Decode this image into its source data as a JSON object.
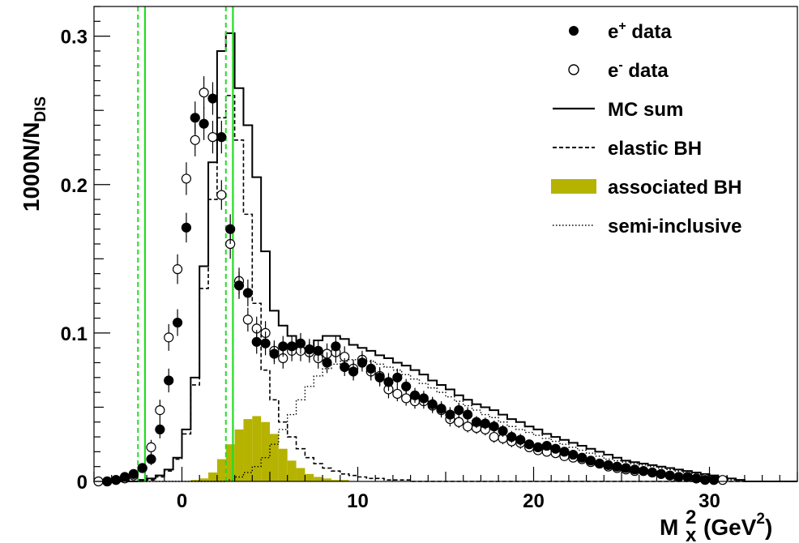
{
  "chart_data": {
    "type": "line",
    "title": "",
    "xlabel": "M",
    "xlabel_sub": "x",
    "xlabel_sup": "2",
    "xlabel_unit": "(GeV",
    "xlabel_unit_sup": "2",
    "xlabel_close": ")",
    "ylabel": "1000N/N",
    "ylabel_sub": "DIS",
    "xlim": [
      -5,
      35
    ],
    "ylim": [
      0,
      0.32
    ],
    "x_ticks": [
      0,
      10,
      20,
      30
    ],
    "x_tick_labels": [
      "0",
      "10",
      "20",
      "30"
    ],
    "y_ticks": [
      0,
      0.1,
      0.2,
      0.3
    ],
    "y_tick_labels": [
      "0",
      "0.1",
      "0.2",
      "0.3"
    ],
    "grid": false,
    "legend_position": "top-right",
    "legend": [
      {
        "key": "e_plus",
        "label": "e",
        "sup": "+",
        "tail": " data",
        "style": "filled-circle"
      },
      {
        "key": "e_minus",
        "label": "e",
        "sup": "-",
        "tail": " data",
        "style": "open-circle"
      },
      {
        "key": "mc_sum",
        "label": "MC sum",
        "sup": "",
        "tail": "",
        "style": "solid-line"
      },
      {
        "key": "elastic",
        "label": "elastic BH",
        "sup": "",
        "tail": "",
        "style": "dashed-line"
      },
      {
        "key": "assoc",
        "label": "associated BH",
        "sup": "",
        "tail": "",
        "style": "filled-box"
      },
      {
        "key": "semi",
        "label": "semi-inclusive",
        "sup": "",
        "tail": "",
        "style": "dotted-line"
      }
    ],
    "colors": {
      "assoc_fill": "#b5b300",
      "cut_line": "#22dd22"
    },
    "cut_lines": {
      "solid": [
        -2.1,
        2.9
      ],
      "dashed": [
        -2.5,
        2.5
      ]
    },
    "histogram_bins": {
      "start": -5.0,
      "width": 0.5,
      "mc_sum": [
        0,
        0,
        0,
        0,
        0,
        0.001,
        0.002,
        0.004,
        0.008,
        0.016,
        0.035,
        0.07,
        0.145,
        0.215,
        0.29,
        0.302,
        0.265,
        0.24,
        0.205,
        0.155,
        0.115,
        0.105,
        0.098,
        0.09,
        0.09,
        0.095,
        0.098,
        0.098,
        0.096,
        0.092,
        0.09,
        0.088,
        0.085,
        0.083,
        0.08,
        0.078,
        0.075,
        0.072,
        0.068,
        0.065,
        0.062,
        0.058,
        0.055,
        0.052,
        0.05,
        0.048,
        0.045,
        0.042,
        0.04,
        0.037,
        0.035,
        0.032,
        0.03,
        0.028,
        0.026,
        0.024,
        0.022,
        0.02,
        0.018,
        0.016,
        0.014,
        0.013,
        0.012,
        0.011,
        0.01,
        0.009,
        0.008,
        0.007,
        0.006,
        0.005,
        0.004,
        0.003,
        0.002,
        0.001,
        0,
        0,
        0,
        0,
        0,
        0
      ],
      "elastic": [
        0,
        0,
        0,
        0,
        0,
        0,
        0.001,
        0.003,
        0.007,
        0.015,
        0.032,
        0.065,
        0.13,
        0.19,
        0.245,
        0.26,
        0.23,
        0.18,
        0.12,
        0.075,
        0.055,
        0.04,
        0.03,
        0.022,
        0.016,
        0.012,
        0.009,
        0.007,
        0.005,
        0.004,
        0.003,
        0.002,
        0.002,
        0.001,
        0.001,
        0.001,
        0,
        0,
        0,
        0,
        0,
        0,
        0,
        0,
        0,
        0,
        0,
        0,
        0,
        0,
        0,
        0,
        0,
        0,
        0,
        0,
        0,
        0,
        0,
        0,
        0,
        0,
        0,
        0,
        0,
        0,
        0,
        0,
        0,
        0,
        0,
        0,
        0,
        0,
        0,
        0,
        0,
        0,
        0,
        0
      ],
      "assoc": [
        0,
        0,
        0,
        0,
        0,
        0,
        0,
        0,
        0,
        0,
        0,
        0.001,
        0.002,
        0.006,
        0.015,
        0.025,
        0.035,
        0.042,
        0.044,
        0.04,
        0.032,
        0.022,
        0.014,
        0.009,
        0.005,
        0.003,
        0.002,
        0.001,
        0.001,
        0,
        0,
        0,
        0,
        0,
        0,
        0,
        0,
        0,
        0,
        0,
        0,
        0,
        0,
        0,
        0,
        0,
        0,
        0,
        0,
        0,
        0,
        0,
        0,
        0,
        0,
        0,
        0,
        0,
        0,
        0,
        0,
        0,
        0,
        0,
        0,
        0,
        0,
        0,
        0,
        0,
        0,
        0,
        0,
        0,
        0,
        0,
        0,
        0,
        0,
        0
      ],
      "semi": [
        0,
        0,
        0,
        0,
        0,
        0,
        0,
        0,
        0,
        0,
        0,
        0,
        0,
        0,
        0,
        0.001,
        0.003,
        0.006,
        0.01,
        0.016,
        0.025,
        0.035,
        0.045,
        0.055,
        0.064,
        0.071,
        0.076,
        0.079,
        0.081,
        0.082,
        0.082,
        0.081,
        0.079,
        0.077,
        0.075,
        0.072,
        0.069,
        0.066,
        0.063,
        0.06,
        0.057,
        0.054,
        0.051,
        0.048,
        0.045,
        0.043,
        0.04,
        0.037,
        0.035,
        0.033,
        0.031,
        0.029,
        0.027,
        0.025,
        0.023,
        0.021,
        0.019,
        0.017,
        0.015,
        0.014,
        0.013,
        0.012,
        0.011,
        0.01,
        0.009,
        0.008,
        0.007,
        0.006,
        0.005,
        0.004,
        0.003,
        0.002,
        0.001,
        0,
        0,
        0,
        0,
        0,
        0,
        0
      ]
    },
    "e_plus": {
      "x": [
        -4.25,
        -3.75,
        -3.25,
        -2.75,
        -2.25,
        -1.75,
        -1.25,
        -0.75,
        -0.25,
        0.25,
        0.75,
        1.25,
        1.75,
        2.25,
        2.75,
        3.25,
        3.75,
        4.25,
        4.75,
        5.25,
        5.75,
        6.25,
        6.75,
        7.25,
        7.75,
        8.25,
        8.75,
        9.25,
        9.75,
        10.25,
        10.75,
        11.25,
        11.75,
        12.25,
        12.75,
        13.25,
        13.75,
        14.25,
        14.75,
        15.25,
        15.75,
        16.25,
        16.75,
        17.25,
        17.75,
        18.25,
        18.75,
        19.25,
        19.75,
        20.25,
        20.75,
        21.25,
        21.75,
        22.25,
        22.75,
        23.25,
        23.75,
        24.25,
        24.75,
        25.25,
        25.75,
        26.25,
        26.75,
        27.25,
        27.75,
        28.25,
        28.75,
        29.25,
        29.75,
        30.25
      ],
      "y": [
        0,
        0.001,
        0.003,
        0.005,
        0.009,
        0.015,
        0.035,
        0.068,
        0.107,
        0.171,
        0.245,
        0.241,
        0.258,
        0.232,
        0.17,
        0.132,
        0.127,
        0.094,
        0.093,
        0.086,
        0.091,
        0.091,
        0.093,
        0.089,
        0.088,
        0.08,
        0.091,
        0.077,
        0.074,
        0.08,
        0.076,
        0.07,
        0.067,
        0.07,
        0.064,
        0.058,
        0.056,
        0.052,
        0.049,
        0.045,
        0.048,
        0.045,
        0.04,
        0.039,
        0.037,
        0.034,
        0.03,
        0.028,
        0.025,
        0.023,
        0.024,
        0.022,
        0.02,
        0.018,
        0.016,
        0.014,
        0.012,
        0.011,
        0.01,
        0.009,
        0.008,
        0.007,
        0.006,
        0.005,
        0.004,
        0.003,
        0.003,
        0.002,
        0.001,
        0.001
      ],
      "err": [
        0,
        0.001,
        0.001,
        0.002,
        0.003,
        0.004,
        0.006,
        0.008,
        0.009,
        0.01,
        0.011,
        0.011,
        0.011,
        0.011,
        0.01,
        0.009,
        0.009,
        0.008,
        0.008,
        0.007,
        0.007,
        0.007,
        0.007,
        0.007,
        0.007,
        0.007,
        0.007,
        0.006,
        0.006,
        0.006,
        0.006,
        0.006,
        0.006,
        0.006,
        0.005,
        0.005,
        0.005,
        0.005,
        0.005,
        0.005,
        0.005,
        0.005,
        0.004,
        0.004,
        0.004,
        0.004,
        0.004,
        0.004,
        0.003,
        0.003,
        0.003,
        0.003,
        0.003,
        0.003,
        0.003,
        0.003,
        0.003,
        0.002,
        0.002,
        0.002,
        0.002,
        0.002,
        0.002,
        0.002,
        0.002,
        0.002,
        0.001,
        0.001,
        0.001,
        0.001
      ]
    },
    "e_minus": {
      "x": [
        -4.75,
        -4.25,
        -3.75,
        -3.25,
        -2.75,
        -2.25,
        -1.75,
        -1.25,
        -0.75,
        -0.25,
        0.25,
        0.75,
        1.25,
        1.75,
        2.25,
        2.75,
        3.25,
        3.75,
        4.25,
        4.75,
        5.25,
        5.75,
        6.25,
        6.75,
        7.25,
        7.75,
        8.25,
        8.75,
        9.25,
        9.75,
        10.25,
        10.75,
        11.25,
        11.75,
        12.25,
        12.75,
        13.25,
        13.75,
        14.25,
        14.75,
        15.25,
        15.75,
        16.25,
        16.75,
        17.25,
        17.75,
        18.25,
        18.75,
        19.25,
        19.75,
        20.25,
        20.75,
        21.25,
        21.75,
        22.25,
        22.75,
        23.25,
        23.75,
        24.25,
        24.75,
        25.25,
        25.75,
        26.25,
        26.75,
        27.25,
        27.75,
        28.25,
        28.75,
        29.25,
        29.75,
        30.25,
        30.75
      ],
      "y": [
        0,
        0,
        0.001,
        0.002,
        0.004,
        0.009,
        0.023,
        0.048,
        0.097,
        0.143,
        0.204,
        0.23,
        0.262,
        0.232,
        0.193,
        0.16,
        0.135,
        0.109,
        0.103,
        0.1,
        0.088,
        0.083,
        0.088,
        0.088,
        0.087,
        0.083,
        0.086,
        0.087,
        0.084,
        0.076,
        0.082,
        0.074,
        0.071,
        0.062,
        0.059,
        0.056,
        0.054,
        0.054,
        0.051,
        0.048,
        0.042,
        0.04,
        0.037,
        0.036,
        0.035,
        0.03,
        0.029,
        0.027,
        0.026,
        0.023,
        0.021,
        0.02,
        0.019,
        0.017,
        0.016,
        0.015,
        0.013,
        0.012,
        0.01,
        0.009,
        0.008,
        0.007,
        0.007,
        0.006,
        0.005,
        0.004,
        0.003,
        0.003,
        0.002,
        0.002,
        0.001,
        0.001
      ],
      "err": [
        0,
        0,
        0.001,
        0.001,
        0.002,
        0.003,
        0.005,
        0.007,
        0.009,
        0.01,
        0.011,
        0.011,
        0.011,
        0.011,
        0.01,
        0.01,
        0.009,
        0.008,
        0.008,
        0.008,
        0.007,
        0.007,
        0.007,
        0.007,
        0.007,
        0.007,
        0.007,
        0.007,
        0.007,
        0.006,
        0.006,
        0.006,
        0.006,
        0.006,
        0.005,
        0.005,
        0.005,
        0.005,
        0.005,
        0.005,
        0.005,
        0.004,
        0.004,
        0.004,
        0.004,
        0.004,
        0.004,
        0.004,
        0.004,
        0.003,
        0.003,
        0.003,
        0.003,
        0.003,
        0.003,
        0.003,
        0.003,
        0.002,
        0.002,
        0.002,
        0.002,
        0.002,
        0.002,
        0.002,
        0.002,
        0.001,
        0.001,
        0.001,
        0.001,
        0.001,
        0.001,
        0.001
      ]
    }
  }
}
